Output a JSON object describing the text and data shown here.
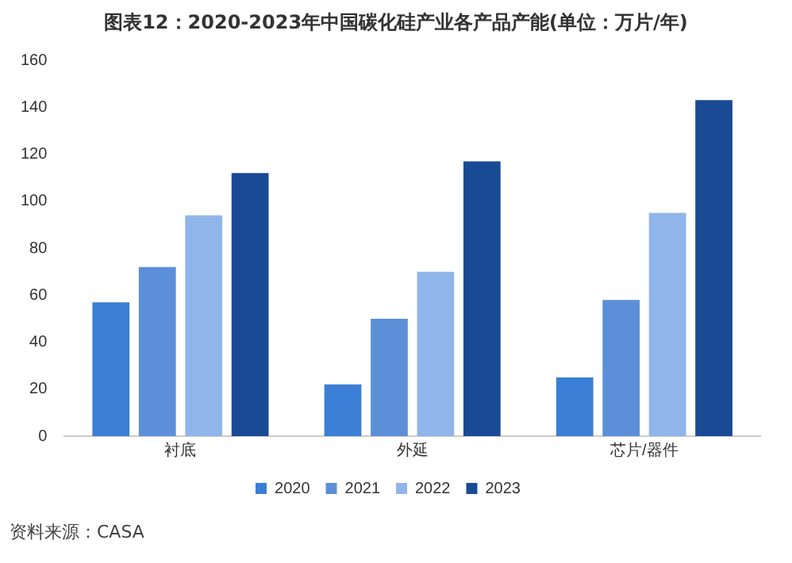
{
  "chart_data": {
    "type": "bar",
    "title": "图表12：2020-2023年中国碳化硅产业各产品产能(单位：万片/年)",
    "categories": [
      "衬底",
      "外延",
      "芯片/器件"
    ],
    "series": [
      {
        "name": "2020",
        "color": "#3a7fd5",
        "values": [
          57,
          22,
          25
        ]
      },
      {
        "name": "2021",
        "color": "#5b8fd8",
        "values": [
          72,
          50,
          58
        ]
      },
      {
        "name": "2022",
        "color": "#8fb5ea",
        "values": [
          94,
          70,
          95
        ]
      },
      {
        "name": "2023",
        "color": "#1a4a94",
        "values": [
          112,
          117,
          143
        ]
      }
    ],
    "ylim": [
      0,
      160
    ],
    "yticks": [
      0,
      20,
      40,
      60,
      80,
      100,
      120,
      140,
      160
    ],
    "grid": false,
    "legend": "bottom",
    "annotations": [
      "资料来源：CASA"
    ]
  }
}
